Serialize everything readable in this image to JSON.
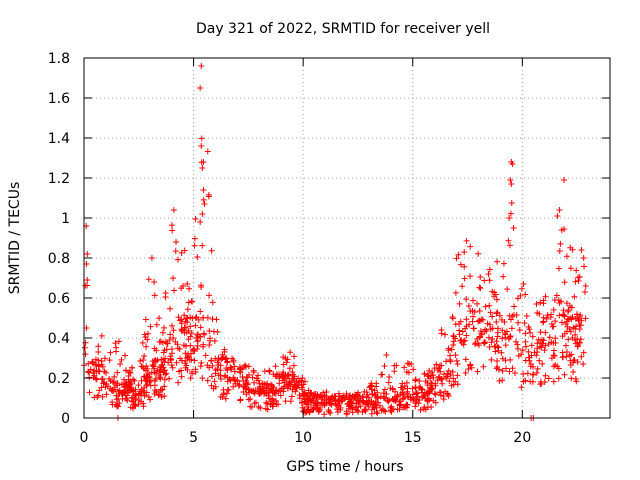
{
  "chart_data": {
    "type": "scatter",
    "title": "Day 321 of 2022, SRMTID for receiver yell",
    "xlabel": "GPS time / hours",
    "ylabel": "SRMTID / TECUs",
    "xlim": [
      0,
      24
    ],
    "ylim": [
      0,
      1.8
    ],
    "grid": true,
    "marker": "+",
    "color": "#ff0000",
    "x_ticks": [
      0,
      5,
      10,
      15,
      20
    ],
    "y_ticks": [
      0,
      0.2,
      0.4,
      0.6,
      0.8,
      1,
      1.2,
      1.4,
      1.6,
      1.8
    ],
    "x_tick_labels": [
      "0",
      "5",
      "10",
      "15",
      "20"
    ],
    "y_tick_labels": [
      "0",
      "0.2",
      "0.4",
      "0.6",
      "0.8",
      "1",
      "1.2",
      "1.4",
      "1.6",
      "1.8"
    ],
    "envelope": {
      "description": "approximate typical (base) and upper-envelope (top) values of the dense point cloud, SRMTID vs hour",
      "x": [
        0.0,
        0.5,
        1.0,
        1.5,
        2.0,
        2.5,
        3.0,
        3.5,
        4.0,
        4.5,
        5.0,
        5.5,
        6.0,
        6.5,
        7.0,
        7.5,
        8.0,
        8.5,
        9.0,
        9.5,
        10.0,
        10.5,
        11.0,
        11.5,
        12.0,
        12.5,
        13.0,
        13.5,
        14.0,
        14.5,
        15.0,
        15.5,
        16.0,
        16.5,
        17.0,
        17.5,
        18.0,
        18.5,
        19.0,
        19.5,
        20.0,
        20.5,
        21.0,
        21.5,
        22.0,
        22.5,
        22.9
      ],
      "base": [
        0.25,
        0.2,
        0.15,
        0.12,
        0.12,
        0.1,
        0.18,
        0.2,
        0.3,
        0.35,
        0.4,
        0.35,
        0.22,
        0.2,
        0.16,
        0.14,
        0.12,
        0.1,
        0.14,
        0.18,
        0.08,
        0.07,
        0.07,
        0.07,
        0.07,
        0.07,
        0.07,
        0.08,
        0.09,
        0.1,
        0.09,
        0.1,
        0.15,
        0.2,
        0.3,
        0.4,
        0.4,
        0.35,
        0.35,
        0.4,
        0.3,
        0.3,
        0.35,
        0.35,
        0.4,
        0.35,
        0.45
      ],
      "top": [
        0.98,
        0.5,
        0.4,
        0.45,
        0.3,
        0.25,
        0.8,
        0.45,
        1.04,
        0.9,
        0.9,
        1.76,
        0.55,
        0.3,
        0.3,
        0.26,
        0.25,
        0.24,
        0.3,
        0.4,
        0.2,
        0.13,
        0.13,
        0.13,
        0.12,
        0.13,
        0.16,
        0.3,
        0.33,
        0.25,
        0.3,
        0.22,
        0.35,
        0.5,
        0.8,
        0.9,
        0.85,
        0.75,
        0.8,
        1.28,
        0.7,
        0.6,
        0.75,
        0.8,
        1.19,
        0.7,
        0.85
      ]
    },
    "outliers": [
      {
        "x": 0.1,
        "y": 0.96
      },
      {
        "x": 0.15,
        "y": 0.82
      },
      {
        "x": 0.15,
        "y": 0.69
      },
      {
        "x": 3.1,
        "y": 0.8
      },
      {
        "x": 3.2,
        "y": 0.68
      },
      {
        "x": 4.1,
        "y": 1.04
      },
      {
        "x": 4.2,
        "y": 0.88
      },
      {
        "x": 5.35,
        "y": 1.76
      },
      {
        "x": 5.3,
        "y": 1.65
      },
      {
        "x": 5.35,
        "y": 1.36
      },
      {
        "x": 5.45,
        "y": 1.28
      },
      {
        "x": 5.4,
        "y": 1.25
      },
      {
        "x": 5.45,
        "y": 1.14
      },
      {
        "x": 5.5,
        "y": 1.07
      },
      {
        "x": 5.4,
        "y": 1.02
      },
      {
        "x": 5.3,
        "y": 0.98
      },
      {
        "x": 19.5,
        "y": 1.28
      },
      {
        "x": 19.55,
        "y": 1.27
      },
      {
        "x": 19.45,
        "y": 1.19
      },
      {
        "x": 19.5,
        "y": 1.17
      },
      {
        "x": 19.4,
        "y": 1.0
      },
      {
        "x": 19.6,
        "y": 0.95
      },
      {
        "x": 21.9,
        "y": 1.19
      },
      {
        "x": 21.7,
        "y": 1.04
      },
      {
        "x": 21.6,
        "y": 1.01
      },
      {
        "x": 21.8,
        "y": 0.94
      },
      {
        "x": 22.7,
        "y": 0.84
      },
      {
        "x": 22.8,
        "y": 0.8
      },
      {
        "x": 1.55,
        "y": 0.0
      },
      {
        "x": 20.4,
        "y": 0.0
      },
      {
        "x": 20.5,
        "y": 0.0
      }
    ]
  }
}
